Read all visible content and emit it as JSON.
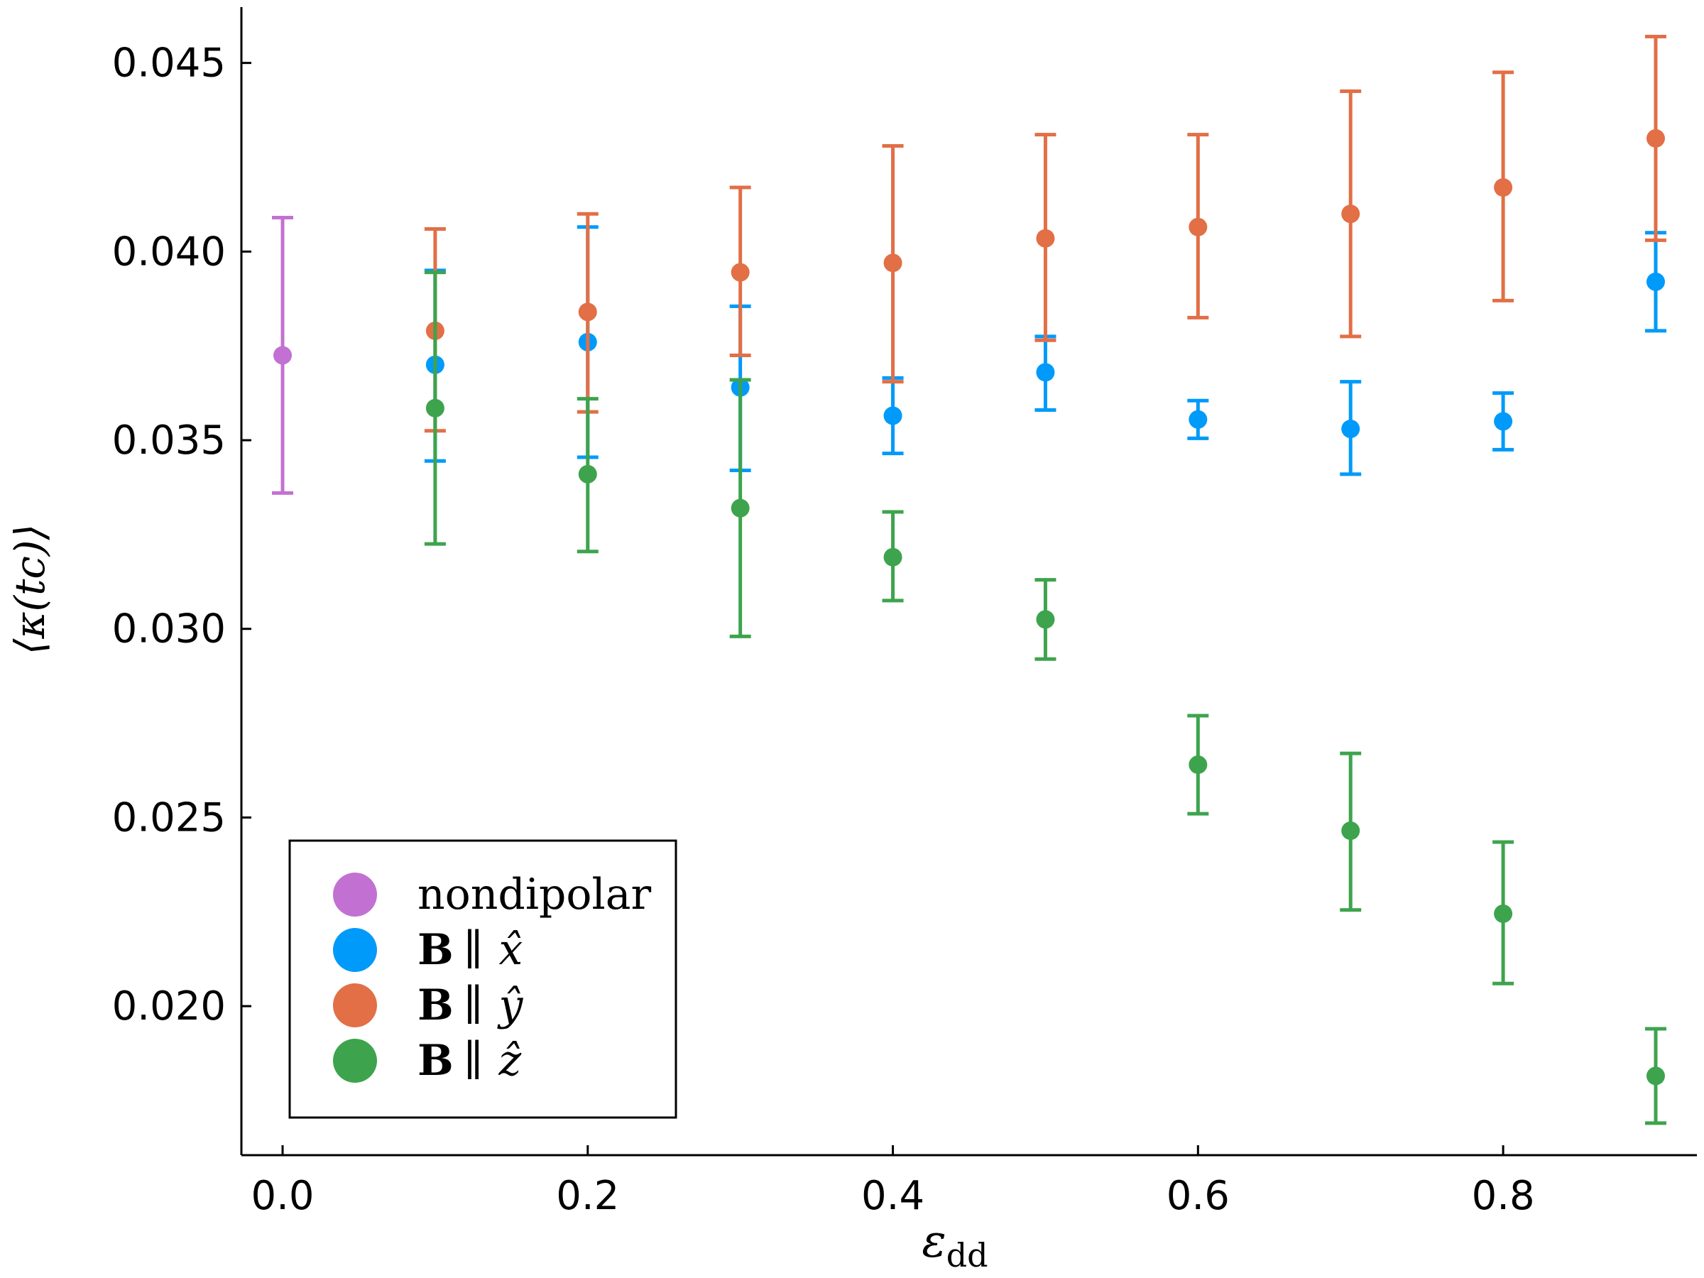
{
  "chart_data": {
    "type": "scatter",
    "xlabel": "εdd",
    "xlabel_main": "ε",
    "xlabel_sub": "dd",
    "ylabel": "⟨κ(tc)⟩",
    "xlim": [
      -0.027,
      0.927
    ],
    "ylim": [
      0.01605,
      0.04648
    ],
    "x_ticks": [
      0.0,
      0.2,
      0.4,
      0.6,
      0.8
    ],
    "x_tick_labels": [
      "0.0",
      "0.2",
      "0.4",
      "0.6",
      "0.8"
    ],
    "y_ticks": [
      0.02,
      0.025,
      0.03,
      0.035,
      0.04,
      0.045
    ],
    "y_tick_labels": [
      "0.020",
      "0.025",
      "0.030",
      "0.035",
      "0.040",
      "0.045"
    ],
    "grid": false,
    "legend_position": "bottom-left",
    "series": [
      {
        "name": "nondipolar",
        "color": "#c271d2",
        "points": [
          {
            "x": 0.0,
            "y": 0.03725,
            "lo": 0.0336,
            "hi": 0.0409
          }
        ]
      },
      {
        "name": "B ∥ x̂",
        "color": "#009afa",
        "points": [
          {
            "x": 0.1,
            "y": 0.037,
            "lo": 0.03445,
            "hi": 0.0395
          },
          {
            "x": 0.2,
            "y": 0.0376,
            "lo": 0.03455,
            "hi": 0.04065
          },
          {
            "x": 0.3,
            "y": 0.0364,
            "lo": 0.0342,
            "hi": 0.03855
          },
          {
            "x": 0.4,
            "y": 0.03565,
            "lo": 0.03465,
            "hi": 0.03665
          },
          {
            "x": 0.5,
            "y": 0.0368,
            "lo": 0.0358,
            "hi": 0.03775
          },
          {
            "x": 0.6,
            "y": 0.03555,
            "lo": 0.03505,
            "hi": 0.03605
          },
          {
            "x": 0.7,
            "y": 0.0353,
            "lo": 0.0341,
            "hi": 0.03655
          },
          {
            "x": 0.8,
            "y": 0.0355,
            "lo": 0.03475,
            "hi": 0.03625
          },
          {
            "x": 0.9,
            "y": 0.0392,
            "lo": 0.0379,
            "hi": 0.0405
          }
        ]
      },
      {
        "name": "B ∥ ŷ",
        "color": "#e26f46",
        "points": [
          {
            "x": 0.1,
            "y": 0.0379,
            "lo": 0.03525,
            "hi": 0.0406
          },
          {
            "x": 0.2,
            "y": 0.0384,
            "lo": 0.03575,
            "hi": 0.041
          },
          {
            "x": 0.3,
            "y": 0.03945,
            "lo": 0.03725,
            "hi": 0.0417
          },
          {
            "x": 0.4,
            "y": 0.0397,
            "lo": 0.03655,
            "hi": 0.0428
          },
          {
            "x": 0.5,
            "y": 0.04035,
            "lo": 0.03765,
            "hi": 0.0431
          },
          {
            "x": 0.6,
            "y": 0.04065,
            "lo": 0.03825,
            "hi": 0.0431
          },
          {
            "x": 0.7,
            "y": 0.041,
            "lo": 0.03775,
            "hi": 0.04425
          },
          {
            "x": 0.8,
            "y": 0.0417,
            "lo": 0.0387,
            "hi": 0.04475
          },
          {
            "x": 0.9,
            "y": 0.043,
            "lo": 0.0403,
            "hi": 0.0457
          }
        ]
      },
      {
        "name": "B ∥ ẑ",
        "color": "#3da44d",
        "points": [
          {
            "x": 0.1,
            "y": 0.03585,
            "lo": 0.03225,
            "hi": 0.03945
          },
          {
            "x": 0.2,
            "y": 0.0341,
            "lo": 0.03205,
            "hi": 0.0361
          },
          {
            "x": 0.3,
            "y": 0.0332,
            "lo": 0.0298,
            "hi": 0.0366
          },
          {
            "x": 0.4,
            "y": 0.0319,
            "lo": 0.03075,
            "hi": 0.0331
          },
          {
            "x": 0.5,
            "y": 0.03025,
            "lo": 0.0292,
            "hi": 0.0313
          },
          {
            "x": 0.6,
            "y": 0.0264,
            "lo": 0.0251,
            "hi": 0.0277
          },
          {
            "x": 0.7,
            "y": 0.02465,
            "lo": 0.02255,
            "hi": 0.0267
          },
          {
            "x": 0.8,
            "y": 0.02245,
            "lo": 0.0206,
            "hi": 0.02435
          },
          {
            "x": 0.9,
            "y": 0.01815,
            "lo": 0.0169,
            "hi": 0.0194
          }
        ]
      }
    ],
    "legend": [
      {
        "kind": "text",
        "text": "nondipolar"
      },
      {
        "kind": "b",
        "bold": "B",
        "rel": "∥",
        "hat": "x̂"
      },
      {
        "kind": "b",
        "bold": "B",
        "rel": "∥",
        "hat": "ŷ"
      },
      {
        "kind": "b",
        "bold": "B",
        "rel": "∥",
        "hat": "ẑ"
      }
    ]
  }
}
